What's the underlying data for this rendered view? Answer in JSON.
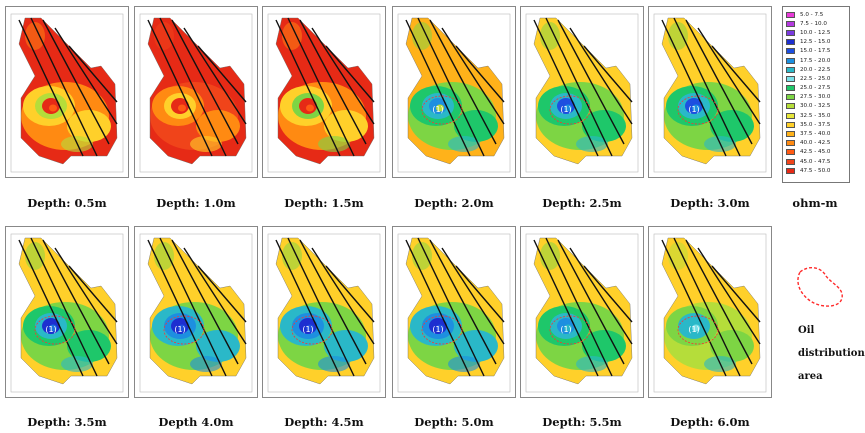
{
  "figure": {
    "panels": [
      {
        "caption": "Depth: 0.5m",
        "oil_marker": "",
        "colors": {
          "bg": "#e62a16",
          "mid": "#ff8a12",
          "blob1": "#ffd02a",
          "blob2": "#b5dd3a",
          "deep": "#e62a16",
          "core": "#ff5a14"
        }
      },
      {
        "caption": "Depth: 1.0m",
        "oil_marker": "",
        "colors": {
          "bg": "#e62a16",
          "mid": "#f0441a",
          "blob1": "#ff8a12",
          "blob2": "#ffd02a",
          "deep": "#e62a16",
          "core": "#ff5a14"
        }
      },
      {
        "caption": "Depth: 1.5m",
        "oil_marker": "",
        "colors": {
          "bg": "#e62a16",
          "mid": "#ff8a12",
          "blob1": "#ffd02a",
          "blob2": "#7dd544",
          "deep": "#e62a16",
          "core": "#ff5a14"
        }
      },
      {
        "caption": "Depth: 2.0m",
        "oil_marker": "(1)",
        "colors": {
          "bg": "#ffb21a",
          "mid": "#7dd544",
          "blob1": "#1ec76a",
          "blob2": "#2ab8c8",
          "deep": "#1d8fe0",
          "core": "#b5dd3a"
        }
      },
      {
        "caption": "Depth: 2.5m",
        "oil_marker": "(1)",
        "colors": {
          "bg": "#ffd02a",
          "mid": "#7dd544",
          "blob1": "#1ec76a",
          "blob2": "#2ab8c8",
          "deep": "#1d4fe0",
          "core": "#1d8fe0"
        }
      },
      {
        "caption": "Depth: 3.0m",
        "oil_marker": "(1)",
        "colors": {
          "bg": "#ffd02a",
          "mid": "#7dd544",
          "blob1": "#1ec76a",
          "blob2": "#2ab8c8",
          "deep": "#1d4fe0",
          "core": "#1d8fe0"
        }
      },
      {
        "caption": "Depth: 3.5m",
        "oil_marker": "(1)",
        "colors": {
          "bg": "#ffd02a",
          "mid": "#7dd544",
          "blob1": "#1ec76a",
          "blob2": "#2ab8c8",
          "deep": "#1d2fd0",
          "core": "#1d6fe0"
        }
      },
      {
        "caption": "Depth 4.0m",
        "oil_marker": "(1)",
        "colors": {
          "bg": "#ffd02a",
          "mid": "#7dd544",
          "blob1": "#2ab8c8",
          "blob2": "#1d8fe0",
          "deep": "#1d2fd0",
          "core": "#1d4fe0"
        }
      },
      {
        "caption": "Depth: 4.5m",
        "oil_marker": "(1)",
        "colors": {
          "bg": "#ffd02a",
          "mid": "#7dd544",
          "blob1": "#2ab8c8",
          "blob2": "#1d8fe0",
          "deep": "#1d2fd0",
          "core": "#1d4fe0"
        }
      },
      {
        "caption": "Depth: 5.0m",
        "oil_marker": "(1)",
        "colors": {
          "bg": "#ffd02a",
          "mid": "#7dd544",
          "blob1": "#2ab8c8",
          "blob2": "#1d8fe0",
          "deep": "#1d2fd0",
          "core": "#1d4fe0"
        }
      },
      {
        "caption": "Depth: 5.5m",
        "oil_marker": "(1)",
        "colors": {
          "bg": "#ffd02a",
          "mid": "#7dd544",
          "blob1": "#1ec76a",
          "blob2": "#2ab8c8",
          "deep": "#1d8fe0",
          "core": "#2ab8c8"
        }
      },
      {
        "caption": "Depth: 6.0m",
        "oil_marker": "(1)",
        "colors": {
          "bg": "#ffd02a",
          "mid": "#b5dd3a",
          "blob1": "#7dd544",
          "blob2": "#2ab8c8",
          "deep": "#2ab8c8",
          "core": "#7be0e8"
        }
      }
    ],
    "legend": {
      "entries": [
        {
          "label": "5.0 - 7.5",
          "color": "#e83ad8"
        },
        {
          "label": "7.5 - 10.0",
          "color": "#b43ae0"
        },
        {
          "label": "10.0 - 12.5",
          "color": "#7a3ae0"
        },
        {
          "label": "12.5 - 15.0",
          "color": "#1d2fd0"
        },
        {
          "label": "15.0 - 17.5",
          "color": "#1d4fe0"
        },
        {
          "label": "17.5 - 20.0",
          "color": "#1d8fe0"
        },
        {
          "label": "20.0 - 22.5",
          "color": "#2ab8c8"
        },
        {
          "label": "22.5 - 25.0",
          "color": "#7be0e8"
        },
        {
          "label": "25.0 - 27.5",
          "color": "#1ec76a"
        },
        {
          "label": "27.5 - 30.0",
          "color": "#7dd544"
        },
        {
          "label": "30.0 - 32.5",
          "color": "#b5dd3a"
        },
        {
          "label": "32.5 - 35.0",
          "color": "#e6e63a"
        },
        {
          "label": "35.0 - 37.5",
          "color": "#ffd02a"
        },
        {
          "label": "37.5 - 40.0",
          "color": "#ffb21a"
        },
        {
          "label": "40.0 - 42.5",
          "color": "#ff8a12"
        },
        {
          "label": "42.5 - 45.0",
          "color": "#ff5a14"
        },
        {
          "label": "45.0 - 47.5",
          "color": "#f0441a"
        },
        {
          "label": "47.5 - 50.0",
          "color": "#e62a16"
        }
      ],
      "unit": "ohm-m"
    },
    "oil_area": {
      "line1": "Oil",
      "line2": "distribution",
      "line3": "area",
      "outline_color": "#ff2a2a"
    }
  }
}
